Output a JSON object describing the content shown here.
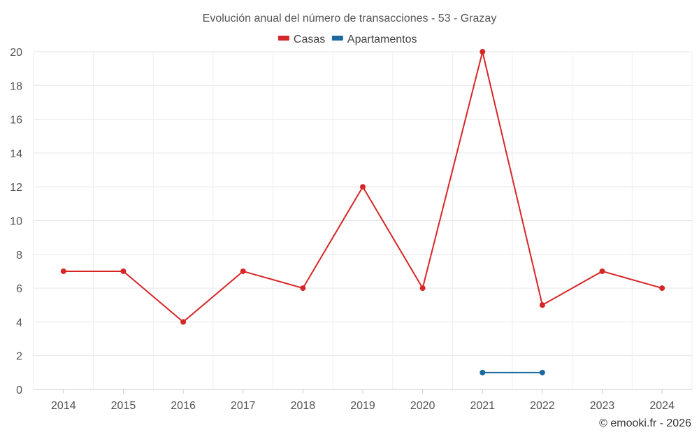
{
  "chart_data": {
    "type": "line",
    "title": "Evolución anual del número de transacciones - 53 - Grazay",
    "categories": [
      "2014",
      "2015",
      "2016",
      "2017",
      "2018",
      "2019",
      "2020",
      "2021",
      "2022",
      "2023",
      "2024"
    ],
    "ylim": [
      0,
      20
    ],
    "yticks": [
      0,
      2,
      4,
      6,
      8,
      10,
      12,
      14,
      16,
      18,
      20
    ],
    "grid": true,
    "legend_position": "top-center",
    "series": [
      {
        "name": "Casas",
        "color": "#d62728",
        "values": [
          7,
          7,
          4,
          7,
          6,
          12,
          6,
          20,
          5,
          7,
          6
        ]
      },
      {
        "name": "Apartamentos",
        "color": "#1a6aa0",
        "values": [
          null,
          null,
          null,
          null,
          null,
          null,
          null,
          1,
          1,
          null,
          null
        ]
      }
    ]
  },
  "credit": "© emooki.fr - 2026"
}
